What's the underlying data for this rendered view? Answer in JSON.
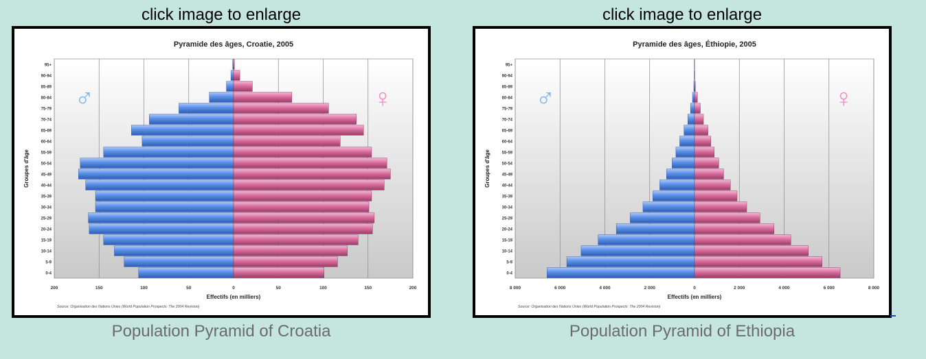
{
  "panels": [
    {
      "enlarge_text": "click image to enlarge",
      "caption": "Population Pyramid of Croatia",
      "chart_data": {
        "type": "bar",
        "title": "Pyramide des âges, Croatie, 2005",
        "xlabel": "Effectifs (en milliers)",
        "ylabel": "Groupes d'âge",
        "xlim": [
          -200,
          200
        ],
        "x_ticks": [
          "200",
          "150",
          "100",
          "50",
          "0",
          "50",
          "100",
          "150",
          "200"
        ],
        "source": "Source: Organisation des Nations Unies (World Population Prospects: The 2004 Revision)",
        "male_symbol": "♂",
        "female_symbol": "♀",
        "categories": [
          "0-4",
          "5-9",
          "10-14",
          "15-19",
          "20-24",
          "25-29",
          "30-34",
          "35-39",
          "40-44",
          "45-49",
          "50-54",
          "55-59",
          "60-64",
          "65-69",
          "70-74",
          "75-79",
          "80-84",
          "85-89",
          "90-94",
          "95+"
        ],
        "series": [
          {
            "values": [
              106,
              122,
              133,
              145,
              161,
              162,
              154,
              154,
              165,
              173,
              171,
              145,
              102,
              114,
              94,
              61,
              27,
              8,
              3,
              1
            ]
          },
          {
            "values": [
              101,
              116,
              127,
              139,
              155,
              157,
              151,
              154,
              168,
              175,
              171,
              154,
              119,
              145,
              137,
              106,
              65,
              21,
              7,
              1
            ]
          }
        ]
      }
    },
    {
      "enlarge_text": "click image to enlarge",
      "caption": "Population Pyramid of Ethiopia",
      "chart_data": {
        "type": "bar",
        "title": "Pyramide des âges, Éthiopie, 2005",
        "xlabel": "Effectifs (en milliers)",
        "ylabel": "Groupes d'âge",
        "xlim": [
          -8000,
          8000
        ],
        "x_ticks": [
          "8 000",
          "6 000",
          "4 000",
          "2 000",
          "0",
          "2 000",
          "4 000",
          "6 000",
          "8 000"
        ],
        "source": "Source: Organisation des Nations Unies (World Population Prospects: The 2004 Revision)",
        "male_symbol": "♂",
        "female_symbol": "♀",
        "categories": [
          "0-4",
          "5-9",
          "10-14",
          "15-19",
          "20-24",
          "25-29",
          "30-34",
          "35-39",
          "40-44",
          "45-49",
          "50-54",
          "55-59",
          "60-64",
          "65-69",
          "70-74",
          "75-79",
          "80-84",
          "85-89",
          "90-94",
          "95+"
        ],
        "series": [
          {
            "values": [
              6580,
              5700,
              5060,
              4300,
              3490,
              2870,
              2300,
              1860,
              1550,
              1250,
              1000,
              830,
              660,
              470,
              300,
              180,
              90,
              30,
              10,
              5
            ]
          },
          {
            "values": [
              6500,
              5690,
              5080,
              4300,
              3550,
              2920,
              2330,
              1900,
              1600,
              1300,
              1080,
              880,
              730,
              600,
              400,
              260,
              130,
              40,
              12,
              5
            ]
          }
        ]
      }
    }
  ]
}
